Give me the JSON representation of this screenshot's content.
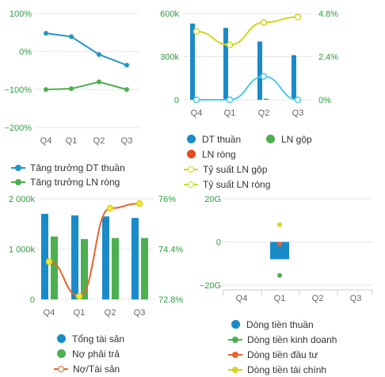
{
  "chart_data": [
    {
      "type": "line",
      "categories": [
        "Q4",
        "Q1",
        "Q2",
        "Q3"
      ],
      "ylim": [
        -200,
        100
      ],
      "y_ticks": [
        100,
        0,
        -100,
        -200
      ],
      "y_tick_labels": [
        "100%",
        "0%",
        "-100%",
        "-200%"
      ],
      "grid": true,
      "legend_position": "bottom",
      "series": [
        {
          "name": "Tăng trưởng DT thuần",
          "color": "#2196c4",
          "values": [
            48,
            39,
            -8,
            -36
          ]
        },
        {
          "name": "Tăng trưởng LN ròng",
          "color": "#4caf50",
          "values": [
            -100,
            -98,
            -80,
            -100
          ]
        }
      ]
    },
    {
      "type": "bar",
      "categories": [
        "Q4",
        "Q1",
        "Q2",
        "Q3"
      ],
      "ylim": [
        0,
        600
      ],
      "y_ticks": [
        0,
        300,
        600
      ],
      "y_tick_labels": [
        "0",
        "300k",
        "600k"
      ],
      "y2lim": [
        0,
        4.8
      ],
      "y2_ticks": [
        0,
        2.4,
        4.8
      ],
      "y2_tick_labels": [
        "0%",
        "2.4%",
        "4.8%"
      ],
      "grid": true,
      "legend_position": "bottom",
      "series": [
        {
          "name": "DT thuần",
          "kind": "bar",
          "color": "#1a8bc8",
          "values": [
            530,
            500,
            405,
            310
          ]
        },
        {
          "name": "LN gộp",
          "kind": "bar",
          "color": "#4caf50",
          "values": [
            0,
            0,
            8,
            0
          ]
        },
        {
          "name": "LN ròng",
          "kind": "bar",
          "color": "#e64a19",
          "values": [
            0,
            0,
            0,
            0
          ]
        },
        {
          "name": "Tỷ suất LN gộp",
          "kind": "line",
          "axis": "right",
          "color": "#d4d61e",
          "values": [
            3.8,
            3.05,
            4.3,
            4.6
          ]
        },
        {
          "name": "Tỷ suất LN ròng",
          "kind": "line",
          "axis": "right",
          "color": "#4dc9e6",
          "values": [
            0,
            0,
            1.3,
            0
          ]
        }
      ]
    },
    {
      "type": "bar",
      "categories": [
        "Q4",
        "Q1",
        "Q2",
        "Q3"
      ],
      "ylim": [
        0,
        2000
      ],
      "y_ticks": [
        0,
        1000,
        2000
      ],
      "y_tick_labels": [
        "0",
        "1 000k",
        "2 000k"
      ],
      "y2lim": [
        72.8,
        76
      ],
      "y2_ticks": [
        72.8,
        74.4,
        76
      ],
      "y2_tick_labels": [
        "72.8%",
        "74.4%",
        "76%"
      ],
      "grid": true,
      "legend_position": "bottom",
      "series": [
        {
          "name": "Tổng tài sản",
          "kind": "bar",
          "color": "#1a8bc8",
          "values": [
            1700,
            1670,
            1650,
            1620
          ]
        },
        {
          "name": "Nợ phải trả",
          "kind": "bar",
          "color": "#4caf50",
          "values": [
            1250,
            1200,
            1220,
            1220
          ]
        },
        {
          "name": "Nợ/Tài sản",
          "kind": "line",
          "axis": "right",
          "color": "#e8632b",
          "values": [
            74.0,
            72.9,
            75.7,
            75.85
          ]
        }
      ]
    },
    {
      "type": "bar",
      "categories": [
        "Q4",
        "Q1",
        "Q2",
        "Q3"
      ],
      "ylim": [
        -20,
        20
      ],
      "y_ticks": [
        20,
        0,
        -20
      ],
      "y_tick_labels": [
        "20G",
        "0",
        "-20G"
      ],
      "grid": true,
      "legend_position": "bottom",
      "series": [
        {
          "name": "Dòng tiền thuần",
          "kind": "bar",
          "color": "#1a8bc8",
          "values": [
            null,
            -8,
            null,
            null
          ]
        },
        {
          "name": "Dòng tiền kinh doanh",
          "kind": "line",
          "color": "#4caf50",
          "values": [
            null,
            -15.5,
            null,
            null
          ]
        },
        {
          "name": "Dòng tiền đầu tư",
          "kind": "line",
          "color": "#e8632b",
          "values": [
            null,
            -1,
            null,
            null
          ]
        },
        {
          "name": "Dòng tiền tài chính",
          "kind": "line",
          "color": "#d4d61e",
          "values": [
            null,
            8,
            null,
            null
          ]
        }
      ]
    }
  ]
}
